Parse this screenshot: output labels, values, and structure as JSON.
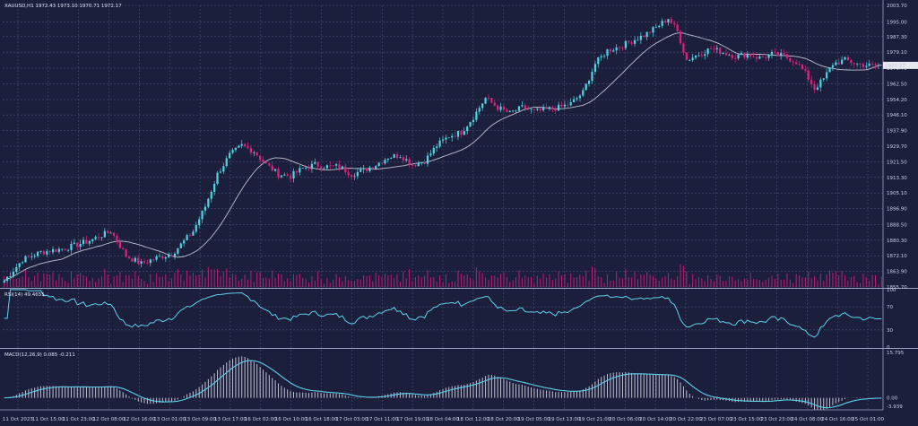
{
  "colors": {
    "background": "#1b1f3c",
    "grid": "#4a5078",
    "axis_text": "#c8cce0",
    "bull": "#4fd4e0",
    "bear": "#e0207a",
    "ma_line": "#c0c0d0",
    "volume": "#c21a78",
    "rsi_line": "#5fd0ea",
    "macd_hist": "#c0c0d0",
    "macd_signal": "#5fd0ea",
    "price_tag_bg": "#e6e8ef",
    "price_tag_text": "#1b1f3c"
  },
  "main": {
    "header": "XAUUSD,H1 1972.43 1973.10 1970.71 1972.17",
    "last_price_label": "1972.17",
    "y_ticks": [
      "2003.70",
      "1995.00",
      "1987.30",
      "1979.10",
      "1970.70",
      "1962.50",
      "1954.20",
      "1946.10",
      "1937.90",
      "1929.70",
      "1921.50",
      "1913.30",
      "1905.10",
      "1896.90",
      "1888.50",
      "1880.30",
      "1872.10",
      "1863.90",
      "1855.70"
    ]
  },
  "rsi": {
    "header": "RSI(14) 49.4655",
    "levels": [
      "100",
      "70",
      "30",
      "0"
    ]
  },
  "macd": {
    "header": "MACD(12,26,9) 0.085 -0.211",
    "top_label": "15.795",
    "zero_label": "0.00",
    "bottom_label": "-3.939"
  },
  "x_ticks": [
    "11 Oct 2023",
    "11 Oct 15:00",
    "11 Oct 23:00",
    "12 Oct 08:00",
    "12 Oct 16:00",
    "13 Oct 01:00",
    "13 Oct 09:00",
    "13 Oct 17:00",
    "16 Oct 02:00",
    "16 Oct 10:00",
    "16 Oct 18:00",
    "17 Oct 03:00",
    "17 Oct 11:00",
    "17 Oct 19:00",
    "18 Oct 04:00",
    "18 Oct 12:00",
    "18 Oct 20:00",
    "19 Oct 05:00",
    "19 Oct 13:00",
    "19 Oct 21:00",
    "20 Oct 06:00",
    "20 Oct 14:00",
    "20 Oct 22:00",
    "23 Oct 07:00",
    "23 Oct 15:00",
    "23 Oct 23:00",
    "24 Oct 08:00",
    "24 Oct 16:00",
    "25 Oct 01:00"
  ],
  "chart_data": {
    "type": "candlestick",
    "symbol": "XAUUSD",
    "timeframe": "H1",
    "ylim": [
      1855.7,
      2003.7
    ],
    "anchors": [
      [
        0,
        1859
      ],
      [
        6,
        1870
      ],
      [
        12,
        1874
      ],
      [
        20,
        1876
      ],
      [
        28,
        1880
      ],
      [
        35,
        1885
      ],
      [
        40,
        1872
      ],
      [
        45,
        1868
      ],
      [
        50,
        1871
      ],
      [
        55,
        1873
      ],
      [
        58,
        1878
      ],
      [
        62,
        1885
      ],
      [
        66,
        1898
      ],
      [
        70,
        1915
      ],
      [
        74,
        1925
      ],
      [
        78,
        1930
      ],
      [
        82,
        1927
      ],
      [
        86,
        1920
      ],
      [
        90,
        1915
      ],
      [
        94,
        1914
      ],
      [
        98,
        1918
      ],
      [
        102,
        1920
      ],
      [
        106,
        1919
      ],
      [
        110,
        1919
      ],
      [
        114,
        1915
      ],
      [
        118,
        1917
      ],
      [
        122,
        1920
      ],
      [
        126,
        1924
      ],
      [
        130,
        1925
      ],
      [
        134,
        1920
      ],
      [
        138,
        1922
      ],
      [
        142,
        1930
      ],
      [
        146,
        1935
      ],
      [
        150,
        1937
      ],
      [
        154,
        1945
      ],
      [
        158,
        1955
      ],
      [
        162,
        1950
      ],
      [
        166,
        1947
      ],
      [
        170,
        1950
      ],
      [
        174,
        1948
      ],
      [
        178,
        1949
      ],
      [
        182,
        1950
      ],
      [
        186,
        1952
      ],
      [
        190,
        1958
      ],
      [
        194,
        1973
      ],
      [
        198,
        1980
      ],
      [
        202,
        1982
      ],
      [
        206,
        1985
      ],
      [
        210,
        1988
      ],
      [
        214,
        1992
      ],
      [
        218,
        1997
      ],
      [
        221,
        1990
      ],
      [
        224,
        1975
      ],
      [
        228,
        1978
      ],
      [
        232,
        1981
      ],
      [
        236,
        1979
      ],
      [
        240,
        1977
      ],
      [
        244,
        1978
      ],
      [
        248,
        1976
      ],
      [
        252,
        1978
      ],
      [
        256,
        1977
      ],
      [
        260,
        1974
      ],
      [
        263,
        1968
      ],
      [
        266,
        1960
      ],
      [
        269,
        1965
      ],
      [
        272,
        1973
      ],
      [
        276,
        1975
      ],
      [
        280,
        1973
      ],
      [
        284,
        1972
      ],
      [
        288,
        1972.17
      ]
    ],
    "volume_range": [
      0,
      30
    ],
    "rsi_range": [
      0,
      100
    ],
    "rsi_last": 49.4655,
    "macd_last": 0.085,
    "signal_last": -0.211
  }
}
